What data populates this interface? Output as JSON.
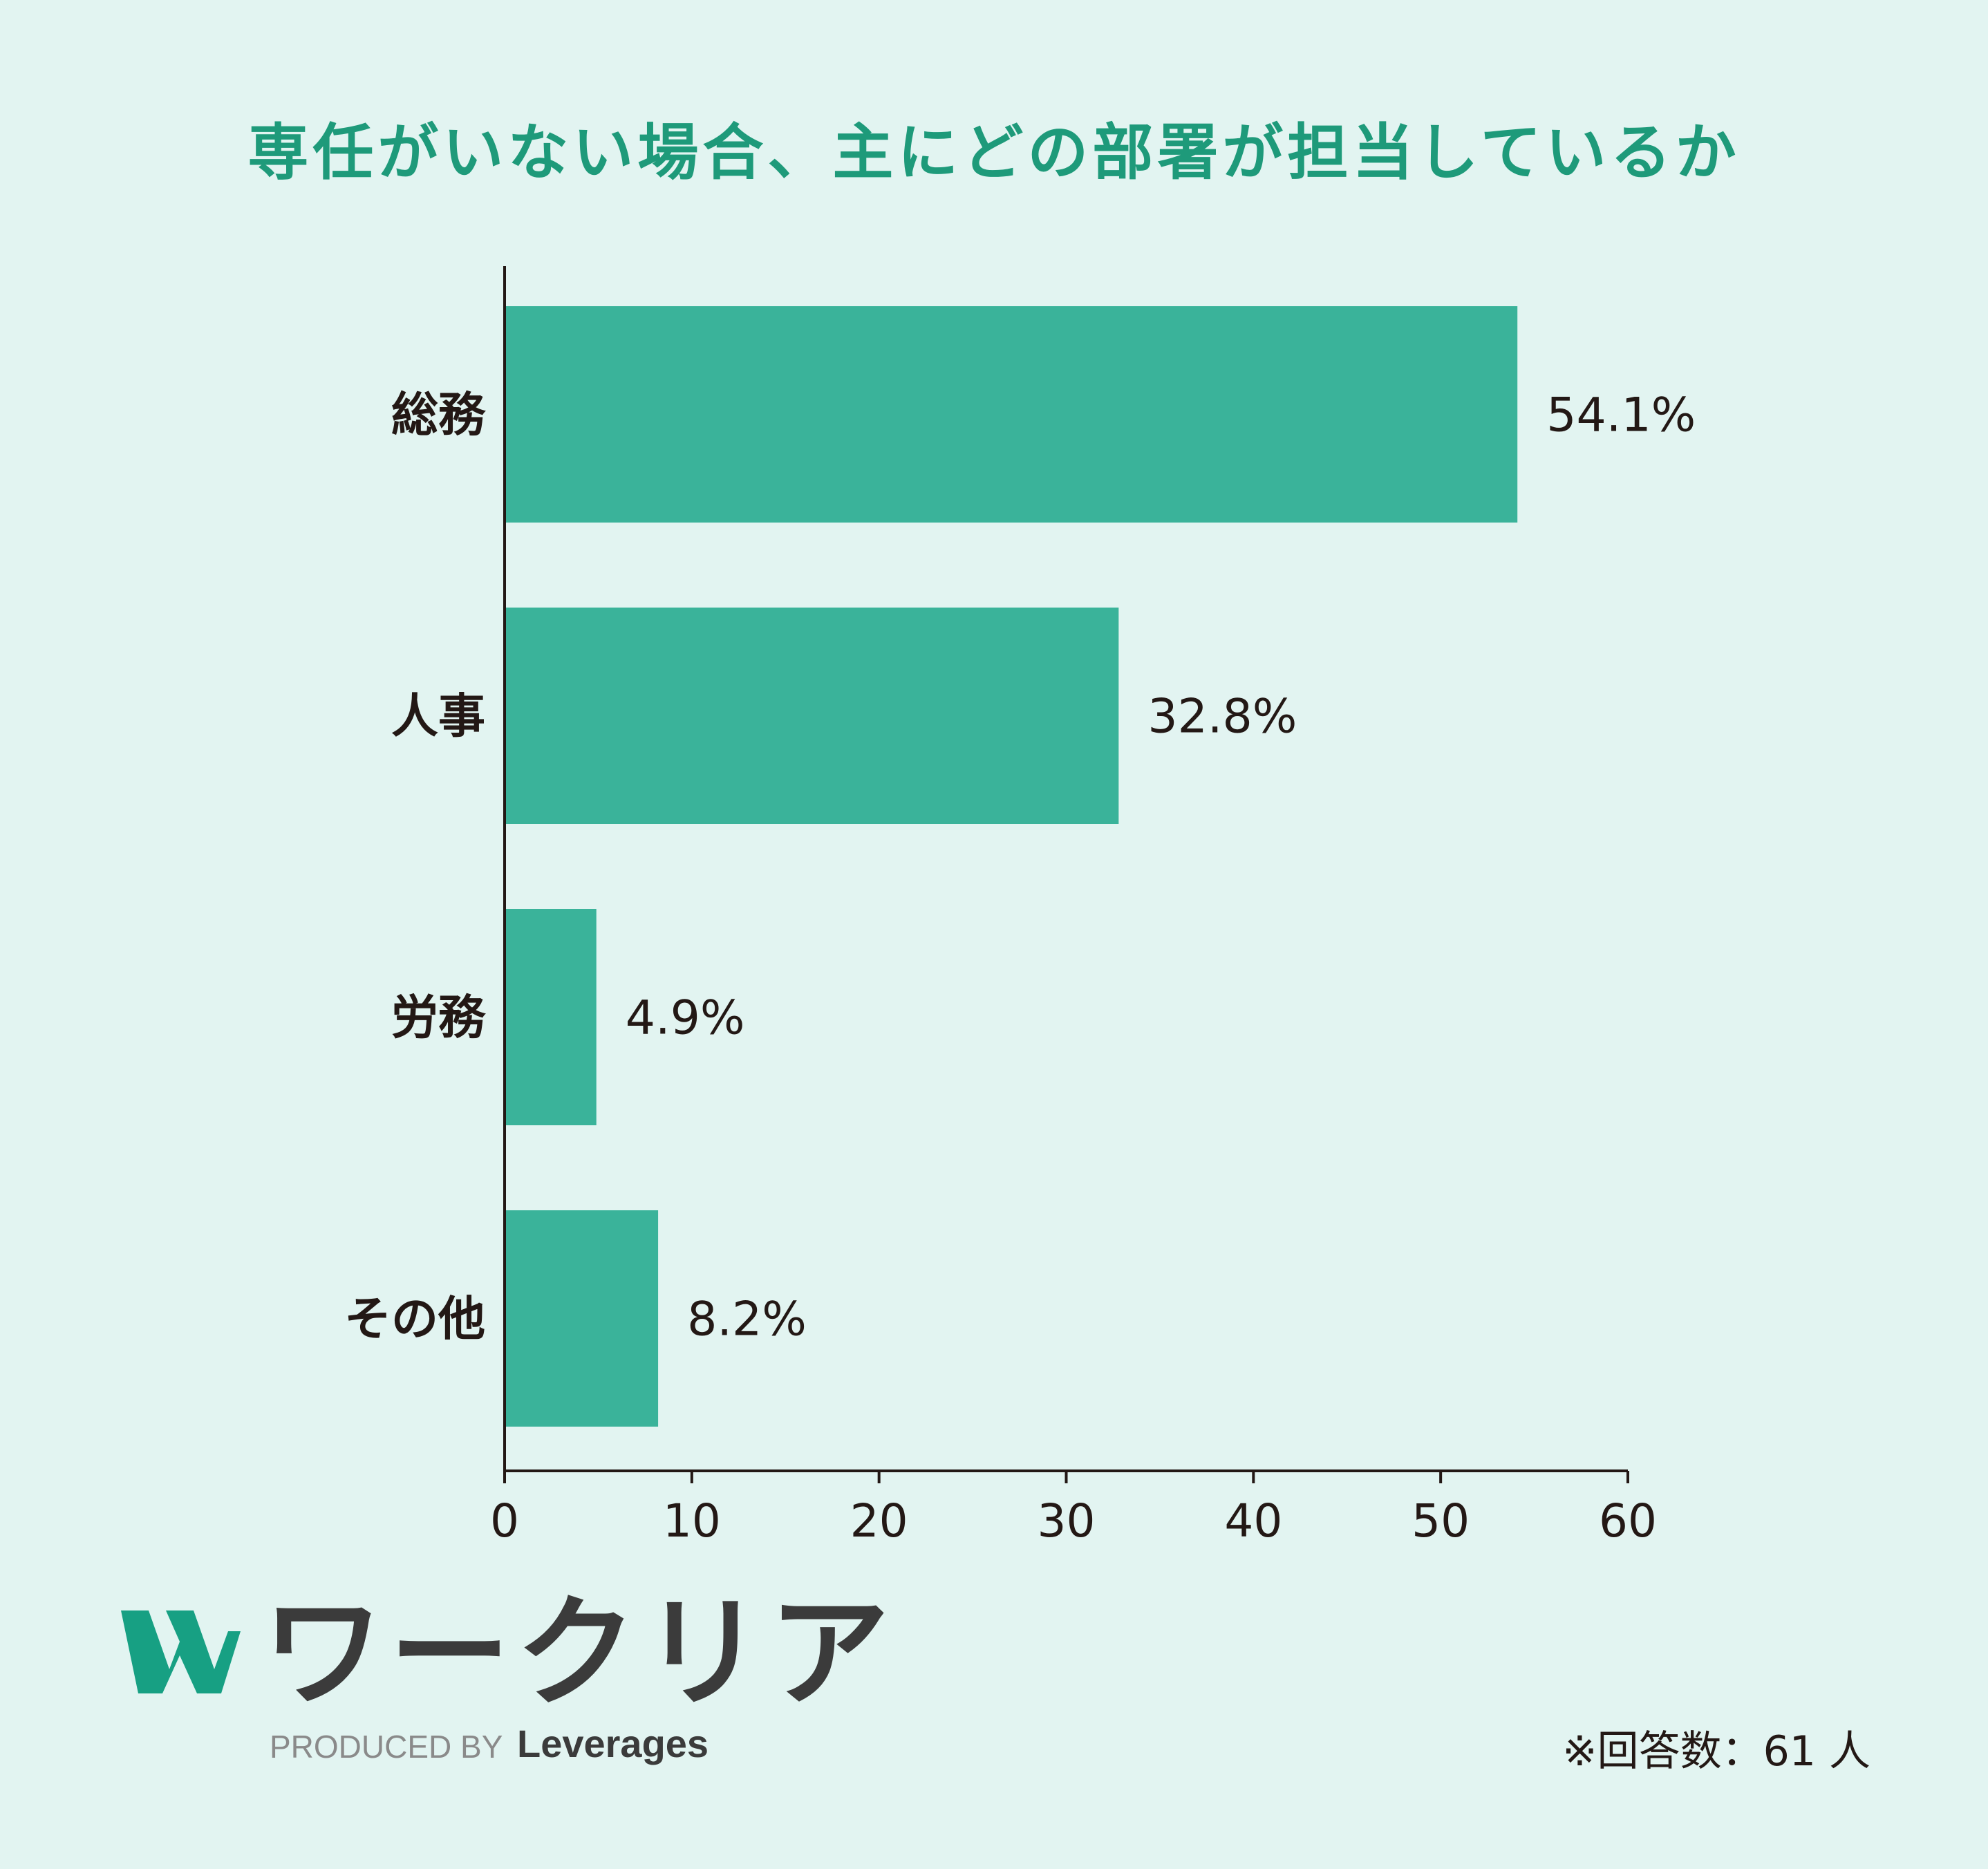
{
  "chart_data": {
    "type": "bar",
    "orientation": "horizontal",
    "title": "専任がいない場合、主にどの部署が担当しているか",
    "categories": [
      "総務",
      "人事",
      "労務",
      "その他"
    ],
    "values": [
      54.1,
      32.8,
      4.9,
      8.2
    ],
    "value_labels": [
      "54.1%",
      "32.8%",
      "4.9%",
      "8.2%"
    ],
    "xlim": [
      0,
      60
    ],
    "xticks": [
      "0",
      "10",
      "20",
      "30",
      "40",
      "50",
      "60"
    ],
    "grid": false,
    "bar_color": "#3ab39a"
  },
  "note": "※回答数：61 人",
  "logo": {
    "name": "ワークリア",
    "produced_by": "PRODUCED BY",
    "brand": "Leverages",
    "icon": "w-logo-icon"
  },
  "colors": {
    "background": "#e2f4f1",
    "title": "#1e9a7a",
    "bar": "#3ab39a",
    "text": "#231815"
  }
}
